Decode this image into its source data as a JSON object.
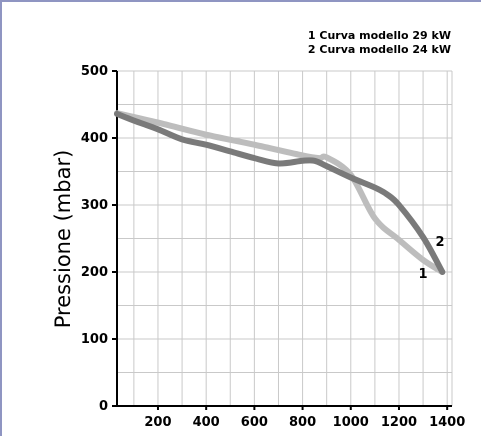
{
  "chart_data": {
    "type": "line",
    "xlabel": "",
    "ylabel": "Pressione (mbar)",
    "xlim": [
      30,
      1420
    ],
    "ylim": [
      0,
      500
    ],
    "x_ticks": [
      "200",
      "400",
      "600",
      "800",
      "1000",
      "1200",
      "1400"
    ],
    "y_ticks": [
      "0",
      "100",
      "200",
      "300",
      "400",
      "500"
    ],
    "legend": [
      "1 Curva modello 29 kW",
      "2 Curva modello 24 kW"
    ],
    "series": [
      {
        "name": "1 Curva modello 29 kW",
        "label": "1",
        "color": "#bdbdbd",
        "x": [
          30,
          200,
          400,
          600,
          800,
          870,
          900,
          1000,
          1100,
          1200,
          1300,
          1380
        ],
        "y": [
          437,
          423,
          405,
          390,
          374,
          370,
          371,
          345,
          280,
          248,
          218,
          200
        ]
      },
      {
        "name": "2 Curva modello 24 kW",
        "label": "2",
        "color": "#7a7a7a",
        "x": [
          30,
          100,
          200,
          300,
          400,
          500,
          600,
          700,
          800,
          850,
          900,
          1000,
          1100,
          1150,
          1200,
          1300,
          1380
        ],
        "y": [
          436,
          426,
          413,
          398,
          390,
          380,
          370,
          362,
          366,
          366,
          358,
          341,
          326,
          316,
          300,
          252,
          200
        ]
      }
    ]
  }
}
